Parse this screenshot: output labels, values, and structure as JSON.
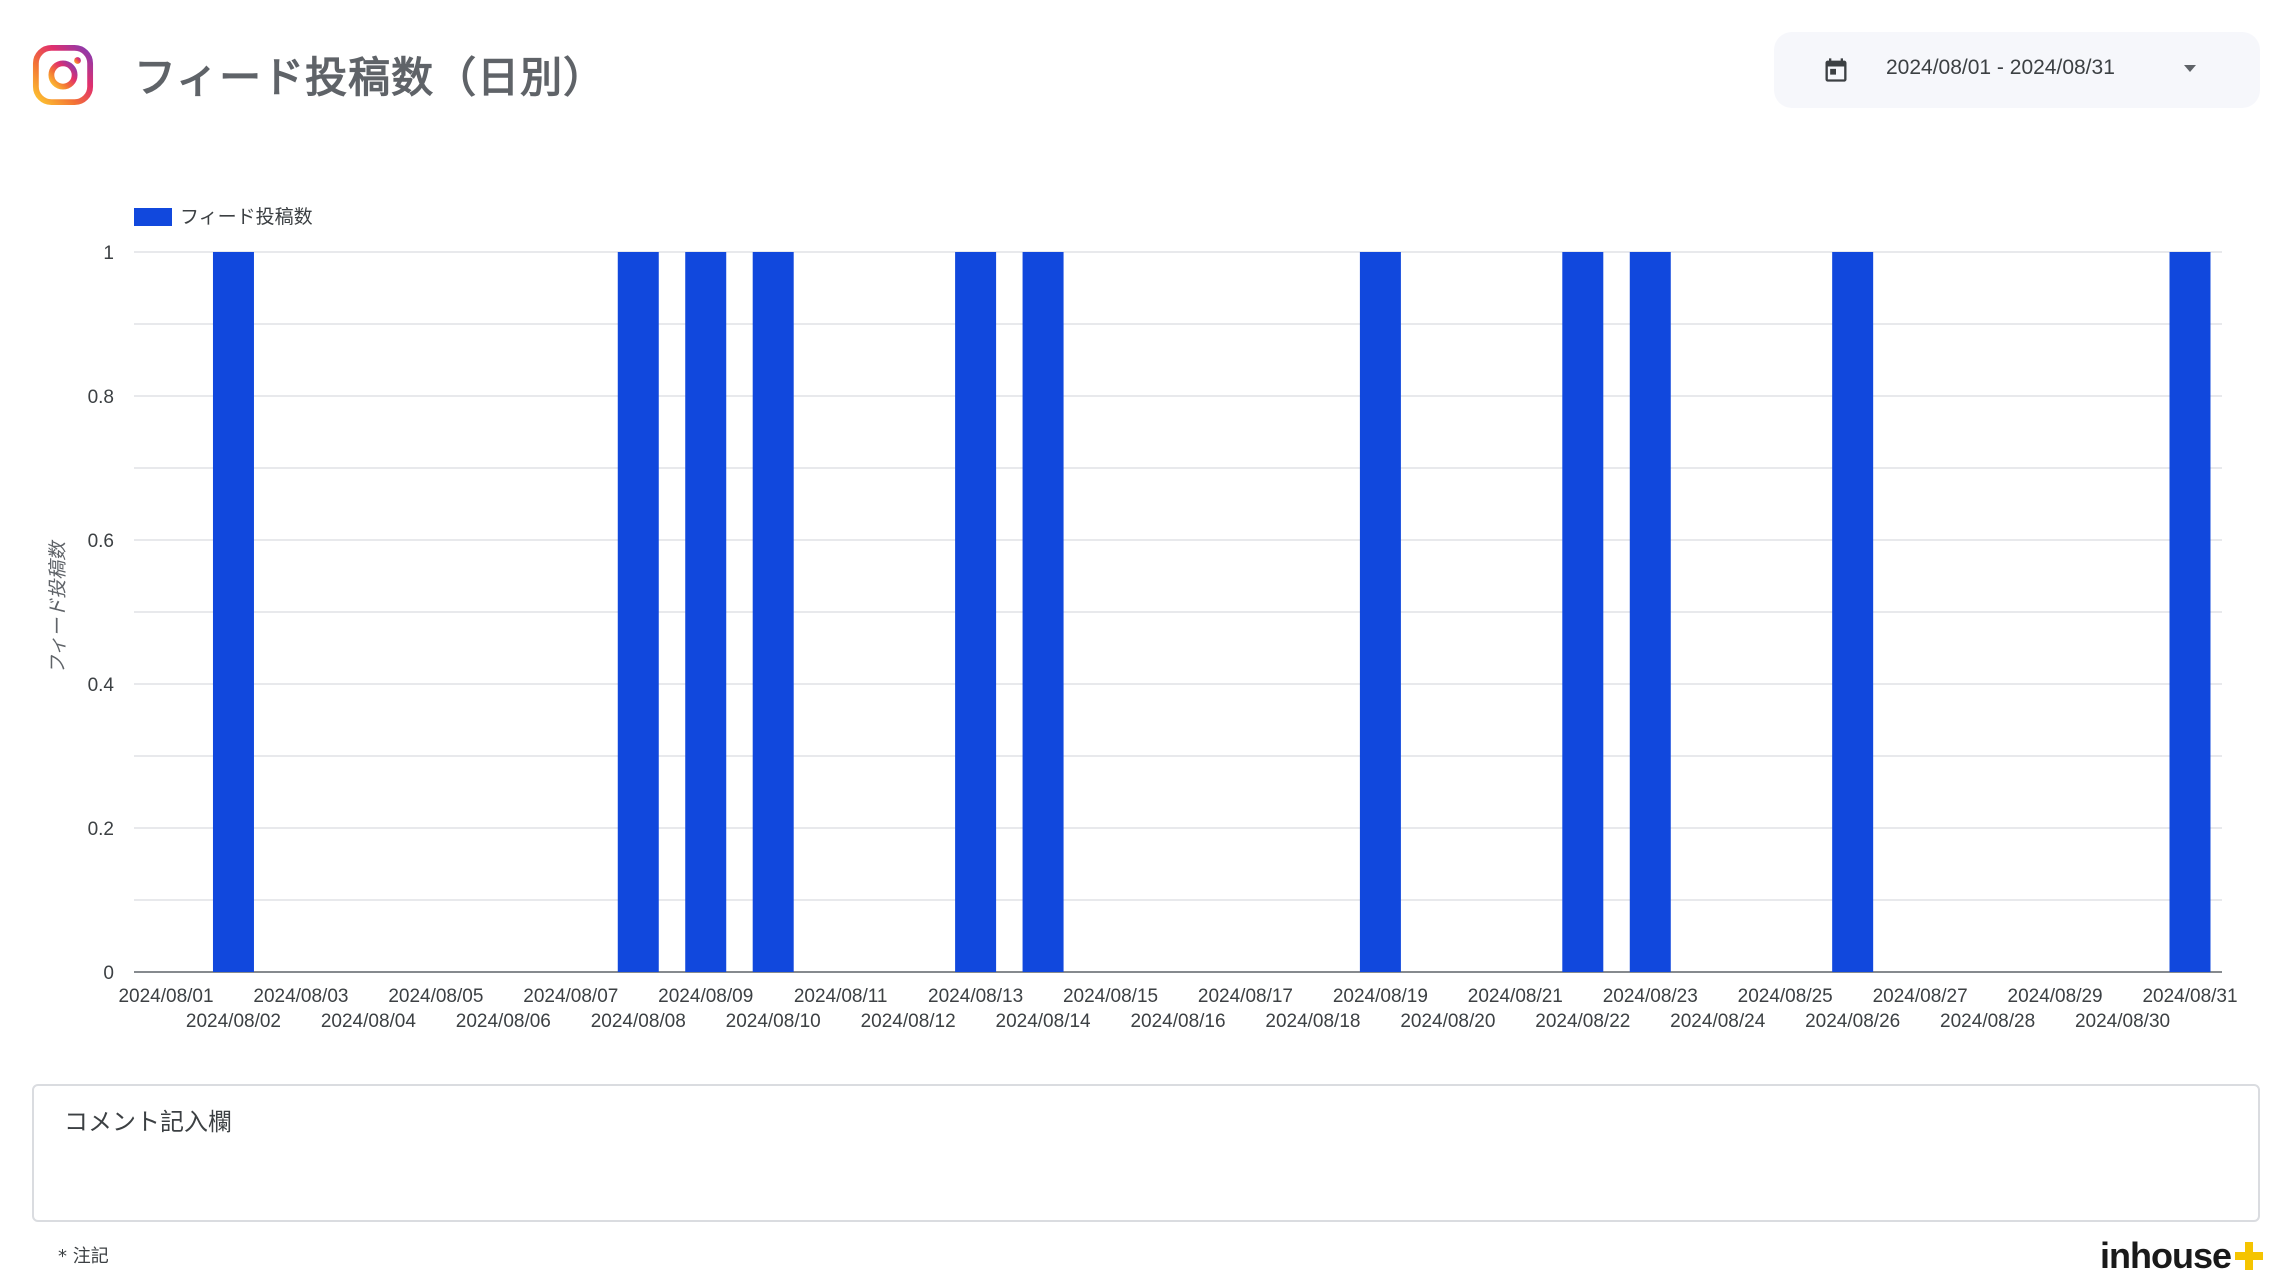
{
  "header": {
    "title": "フィード投稿数（日別）",
    "logo_icon": "instagram-logo-icon"
  },
  "date_range": {
    "label": "2024/08/01 - 2024/08/31",
    "icon": "calendar-icon"
  },
  "chart_data": {
    "type": "bar",
    "legend": [
      "フィード投稿数"
    ],
    "ylabel": "フィード投稿数",
    "xlabel": "",
    "ylim": [
      0,
      1
    ],
    "yticks": [
      "0",
      "0.2",
      "0.4",
      "0.6",
      "0.8",
      "1"
    ],
    "grid": true,
    "legend_position": "top-left",
    "color": "#1148dd",
    "categories": [
      "2024/08/01",
      "2024/08/02",
      "2024/08/03",
      "2024/08/04",
      "2024/08/05",
      "2024/08/06",
      "2024/08/07",
      "2024/08/08",
      "2024/08/09",
      "2024/08/10",
      "2024/08/11",
      "2024/08/12",
      "2024/08/13",
      "2024/08/14",
      "2024/08/15",
      "2024/08/16",
      "2024/08/17",
      "2024/08/18",
      "2024/08/19",
      "2024/08/20",
      "2024/08/21",
      "2024/08/22",
      "2024/08/23",
      "2024/08/24",
      "2024/08/25",
      "2024/08/26",
      "2024/08/27",
      "2024/08/28",
      "2024/08/29",
      "2024/08/30",
      "2024/08/31"
    ],
    "series": [
      {
        "name": "フィード投稿数",
        "values": [
          0,
          1,
          0,
          0,
          0,
          0,
          0,
          1,
          1,
          1,
          0,
          0,
          1,
          1,
          0,
          0,
          0,
          0,
          1,
          0,
          0,
          1,
          1,
          0,
          0,
          1,
          0,
          0,
          0,
          0,
          1
        ]
      }
    ]
  },
  "comment": {
    "label": "コメント記入欄"
  },
  "footer": {
    "note": "* 注記",
    "brand": "inhouse"
  }
}
